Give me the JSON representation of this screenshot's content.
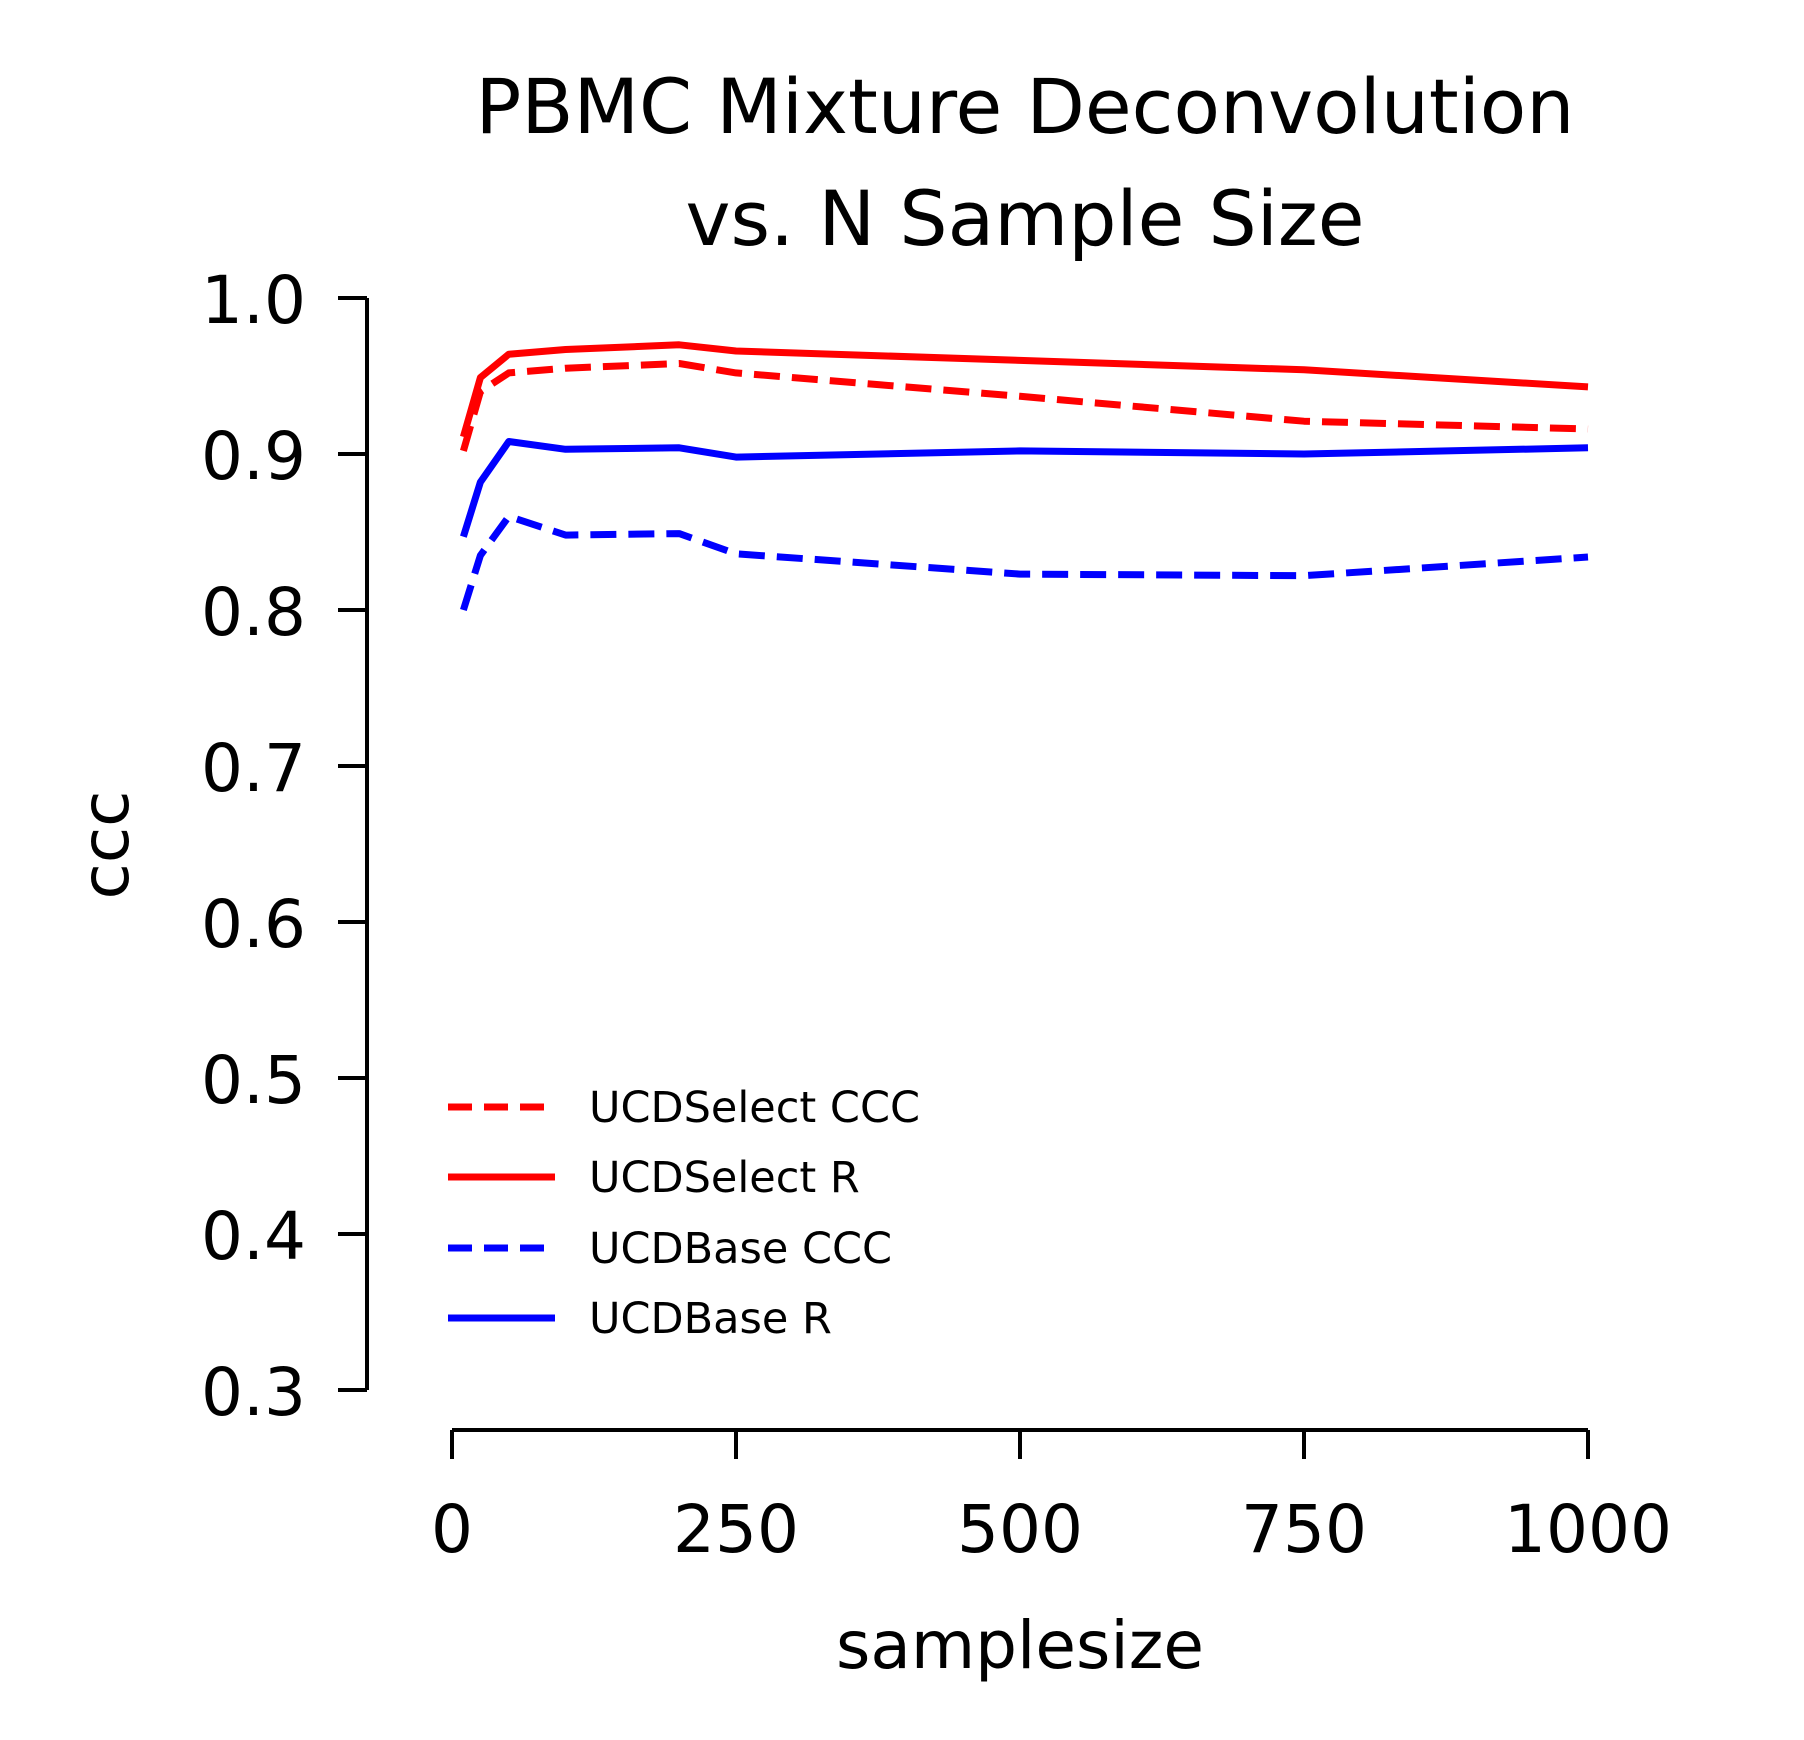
{
  "chart_data": {
    "type": "line",
    "title": [
      "PBMC Mixture Deconvolution",
      "vs. N Sample Size"
    ],
    "xlabel": "samplesize",
    "ylabel": "ccc",
    "xlim": [
      0,
      1000
    ],
    "ylim": [
      0.3,
      1.0
    ],
    "xticks": [
      0,
      250,
      500,
      750,
      1000
    ],
    "xtick_labels": [
      "0",
      "250",
      "500",
      "750",
      "1000"
    ],
    "yticks": [
      0.3,
      0.4,
      0.5,
      0.6,
      0.7,
      0.8,
      0.9,
      1.0
    ],
    "ytick_labels": [
      "0.3",
      "0.4",
      "0.5",
      "0.6",
      "0.7",
      "0.8",
      "0.9",
      "1.0"
    ],
    "grid": false,
    "legend_position": "lower-left",
    "series": [
      {
        "name": "UCDSelect CCC",
        "color": "#ff0000",
        "style": "dashed",
        "x": [
          10,
          25,
          50,
          100,
          200,
          250,
          500,
          750,
          1000
        ],
        "y": [
          0.902,
          0.94,
          0.952,
          0.955,
          0.958,
          0.952,
          0.937,
          0.921,
          0.916
        ]
      },
      {
        "name": "UCDSelect R",
        "color": "#ff0000",
        "style": "solid",
        "x": [
          10,
          25,
          50,
          100,
          200,
          250,
          500,
          750,
          1000
        ],
        "y": [
          0.911,
          0.949,
          0.964,
          0.967,
          0.97,
          0.966,
          0.96,
          0.954,
          0.943
        ]
      },
      {
        "name": "UCDBase CCC",
        "color": "#0000ff",
        "style": "dashed",
        "x": [
          10,
          25,
          50,
          100,
          200,
          250,
          500,
          750,
          1000
        ],
        "y": [
          0.8,
          0.835,
          0.86,
          0.848,
          0.849,
          0.836,
          0.823,
          0.822,
          0.834
        ]
      },
      {
        "name": "UCDBase R",
        "color": "#0000ff",
        "style": "solid",
        "x": [
          10,
          25,
          50,
          100,
          200,
          250,
          500,
          750,
          1000
        ],
        "y": [
          0.847,
          0.882,
          0.908,
          0.903,
          0.904,
          0.898,
          0.902,
          0.9,
          0.904
        ]
      }
    ]
  }
}
